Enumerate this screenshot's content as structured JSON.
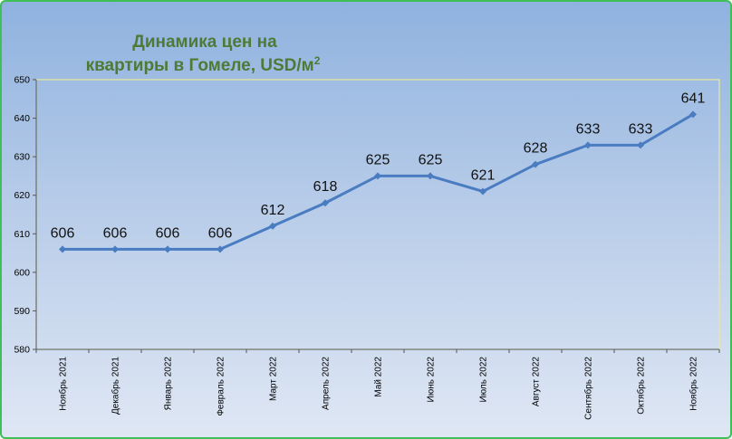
{
  "chart_data": {
    "type": "line",
    "title_line1": "Динамика цен на",
    "title_line2_main": "квартиры в Гомеле, USD/м",
    "title_superscript": "2",
    "categories": [
      "Ноябрь 2021",
      "Декабрь 2021",
      "Январь 2022",
      "Февраль 2022",
      "Март 2022",
      "Апрель 2022",
      "Май 2022",
      "Июнь 2022",
      "Июль 2022",
      "Август 2022",
      "Сентябрь 2022",
      "Октябрь 2022",
      "Ноябрь 2022"
    ],
    "values": [
      606,
      606,
      606,
      606,
      612,
      618,
      625,
      625,
      621,
      628,
      633,
      633,
      641
    ],
    "ylim": [
      580,
      650
    ],
    "yticks": [
      580,
      590,
      600,
      610,
      620,
      630,
      640,
      650
    ],
    "grid": false,
    "legend": "none",
    "line_color": "#4a7cc1",
    "plot_background_top": "#8fb2df",
    "plot_background_bottom": "#e3eaf5",
    "plot_border_color": "#e8e89a",
    "title_color": "#4e7a35"
  }
}
